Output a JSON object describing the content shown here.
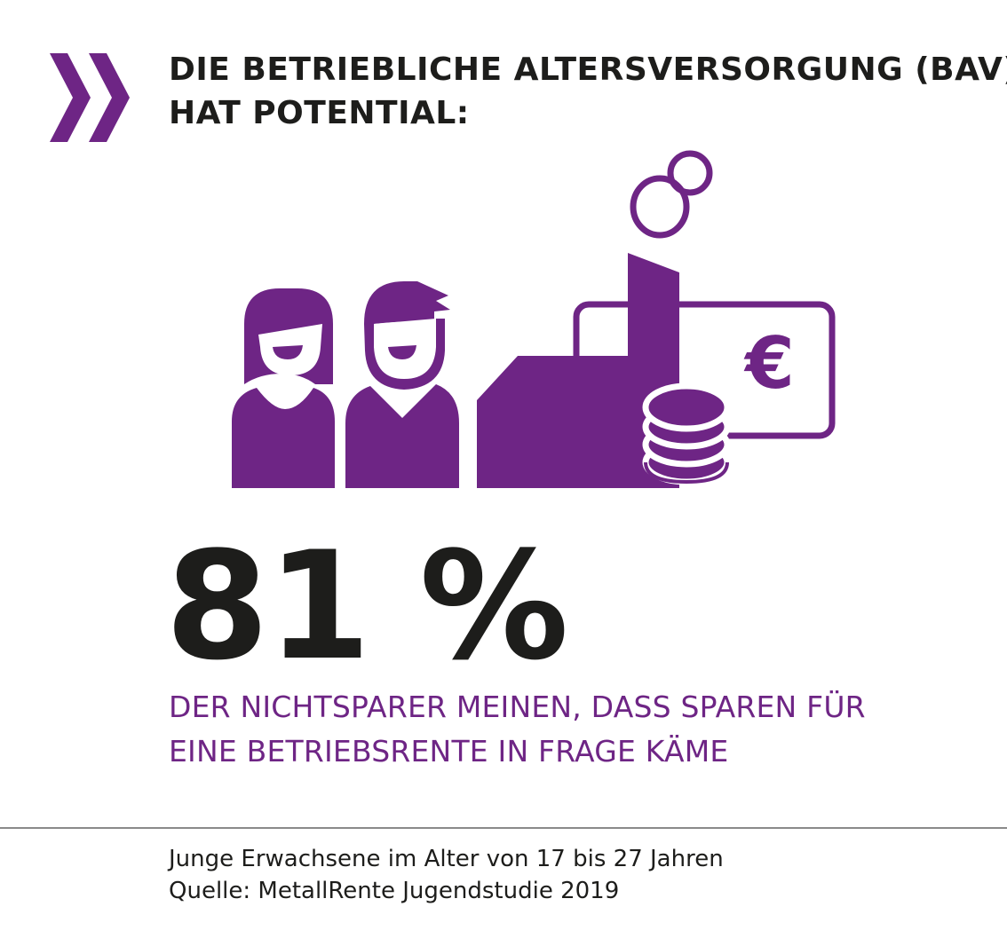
{
  "headline": {
    "line1": "DIE BETRIEBLICHE ALTERSVERSORGUNG (BAV)",
    "line2": "HAT POTENTIAL:"
  },
  "stat": {
    "value": "81 %"
  },
  "statement": {
    "line1": "DER NICHTSPARER MEINEN, DASS SPAREN FÜR",
    "line2": "EINE BETRIEBSRENTE IN FRAGE KÄME"
  },
  "illustration": {
    "currency_symbol": "€",
    "icons": [
      "chevron-double-icon",
      "woman-icon",
      "man-icon",
      "factory-icon",
      "banknote-icon",
      "coin-stack-icon",
      "smoke-bubbles-icon"
    ]
  },
  "footer": {
    "note": "Junge Erwachsene im Alter von 17 bis 27 Jahren",
    "source": "Quelle: MetallRente Jugendstudie 2019"
  },
  "colors": {
    "accent": "#6e2585",
    "text": "#1d1d1b",
    "divider": "#8a8a8a",
    "background": "#ffffff"
  }
}
